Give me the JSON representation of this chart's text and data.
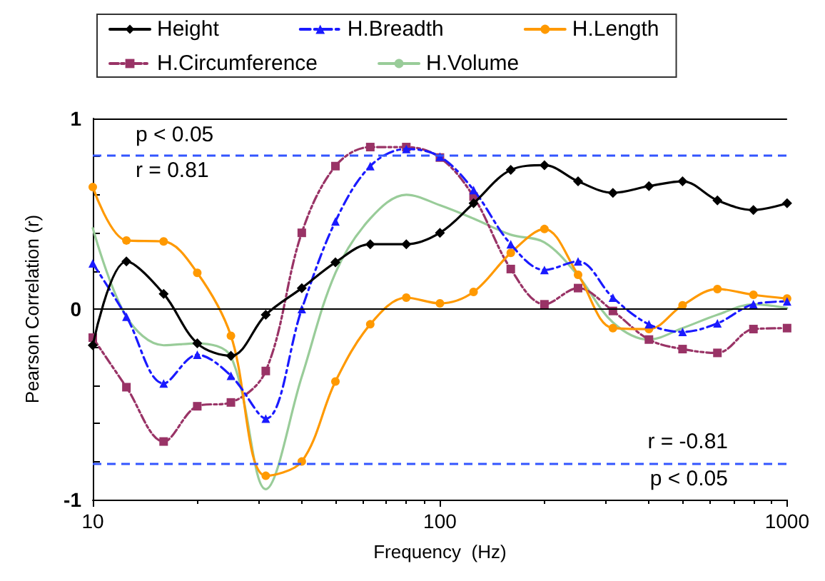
{
  "chart_data": {
    "type": "line",
    "xlabel": "Frequency  (Hz)",
    "ylabel": "Pearson Correlation (r)",
    "log": "x",
    "x": [
      10,
      12.5,
      16,
      20,
      25,
      31.5,
      40,
      50,
      63,
      80,
      100,
      125,
      160,
      200,
      250,
      315,
      400,
      500,
      630,
      800,
      1000
    ],
    "xlim": [
      10,
      1000
    ],
    "xticks": [
      10,
      100,
      1000
    ],
    "ylim": [
      -1,
      1
    ],
    "yticks": [
      -1,
      {
        "value": -0.8,
        "label": null
      },
      {
        "value": -0.6,
        "label": null
      },
      {
        "value": -0.4,
        "label": null
      },
      {
        "value": -0.2,
        "label": null
      },
      0,
      {
        "value": 0.2,
        "label": null
      },
      {
        "value": 0.4,
        "label": null
      },
      {
        "value": 0.6,
        "label": null
      },
      {
        "value": 0.8,
        "label": null
      },
      1
    ],
    "grid": false,
    "legend": "top",
    "series": [
      {
        "name": "Height",
        "color": "#000000",
        "marker": "diamond",
        "line_style": "solid",
        "values": [
          -0.19,
          0.25,
          0.08,
          -0.18,
          -0.245,
          -0.03,
          0.11,
          0.245,
          0.34,
          0.34,
          0.4,
          0.555,
          0.73,
          0.755,
          0.67,
          0.61,
          0.645,
          0.67,
          0.57,
          0.52,
          0.555
        ]
      },
      {
        "name": "H.Breadth",
        "color": "#1a1aff",
        "marker": "triangle",
        "line_style": "dashed",
        "values": [
          0.24,
          -0.04,
          -0.39,
          -0.24,
          -0.35,
          -0.575,
          0.0,
          0.46,
          0.75,
          0.84,
          0.8,
          0.625,
          0.34,
          0.205,
          0.25,
          0.06,
          -0.08,
          -0.12,
          -0.075,
          0.025,
          0.04
        ]
      },
      {
        "name": "H.Length",
        "color": "#ff9900",
        "marker": "circle",
        "line_style": "solid",
        "values": [
          0.64,
          0.36,
          0.355,
          0.19,
          -0.14,
          -0.875,
          -0.8,
          -0.38,
          -0.08,
          0.06,
          0.03,
          0.09,
          0.295,
          0.42,
          0.18,
          -0.1,
          -0.105,
          0.02,
          0.105,
          0.075,
          0.055
        ]
      },
      {
        "name": "H.Circumference",
        "color": "#993366",
        "marker": "square",
        "line_style": "dotted",
        "values": [
          -0.15,
          -0.41,
          -0.695,
          -0.51,
          -0.49,
          -0.325,
          0.4,
          0.75,
          0.85,
          0.85,
          0.795,
          0.59,
          0.21,
          0.025,
          0.11,
          -0.01,
          -0.16,
          -0.21,
          -0.23,
          -0.105,
          -0.1
        ]
      },
      {
        "name": "H.Volume",
        "color": "#99cc99",
        "marker": "none",
        "line_style": "solid",
        "values": [
          0.425,
          -0.04,
          -0.19,
          -0.18,
          -0.25,
          -0.945,
          -0.355,
          0.19,
          0.475,
          0.6,
          0.545,
          0.475,
          0.39,
          0.35,
          0.175,
          -0.07,
          -0.16,
          -0.1,
          -0.03,
          0.025,
          0.005
        ]
      }
    ],
    "ref_lines": [
      {
        "axis": "y",
        "value": 0.81,
        "color": "#3355ff",
        "line_style": "dashed"
      },
      {
        "axis": "y",
        "value": -0.81,
        "color": "#3355ff",
        "line_style": "dashed"
      },
      {
        "axis": "y",
        "value": 0,
        "color": "#000000",
        "line_style": "solid"
      },
      {
        "axis": "y",
        "value": 1,
        "color": "#000000",
        "line_style": "solid"
      }
    ],
    "annotations": [
      "p < 0.05",
      "r = 0.81",
      "r = -0.81",
      "p < 0.05"
    ]
  }
}
